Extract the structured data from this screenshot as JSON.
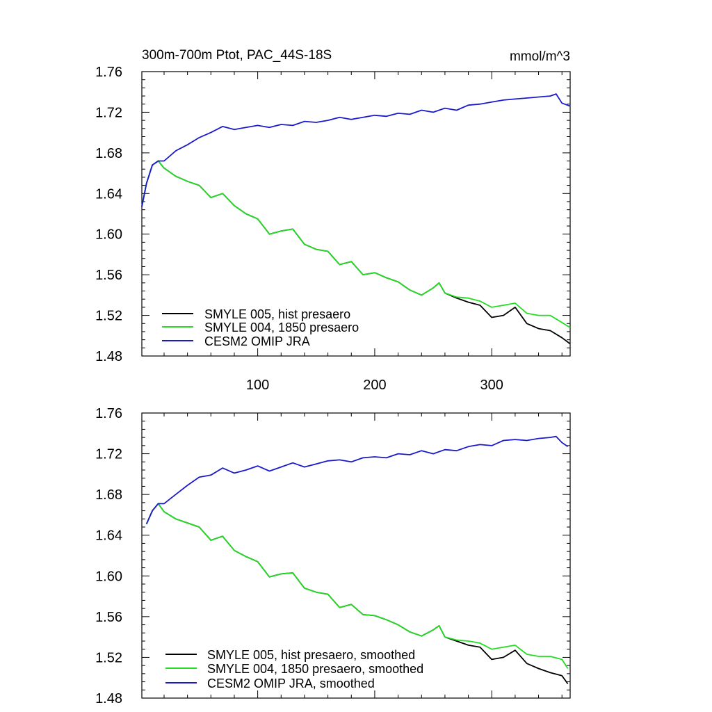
{
  "colors": {
    "smyle005": "#000000",
    "smyle004": "#22dd22",
    "omip": "#1a1acc"
  },
  "chart_data": [
    {
      "type": "line",
      "title": "300m-700m Ptot, PAC_44S-18S",
      "units": "mmol/m^3",
      "xlim": [
        1,
        367
      ],
      "ylim": [
        1.48,
        1.76
      ],
      "xticks": [
        100,
        200,
        300
      ],
      "xtick_labels": [
        "100",
        "200",
        "300"
      ],
      "yticks": [
        1.48,
        1.52,
        1.56,
        1.6,
        1.64,
        1.68,
        1.72,
        1.76
      ],
      "ytick_labels": [
        "1.48",
        "1.52",
        "1.56",
        "1.60",
        "1.64",
        "1.68",
        "1.72",
        "1.76"
      ],
      "legend_position": "bottom-left",
      "series": [
        {
          "name": "SMYLE 005, hist presaero",
          "color_key": "smyle005",
          "x": [
            1,
            5,
            10,
            15,
            20,
            30,
            40,
            50,
            60,
            70,
            80,
            90,
            100,
            110,
            120,
            130,
            140,
            150,
            160,
            170,
            180,
            190,
            200,
            210,
            220,
            230,
            240,
            250,
            255,
            260,
            270,
            280,
            290,
            300,
            310,
            320,
            330,
            340,
            350,
            360,
            367
          ],
          "y": [
            1.627,
            1.65,
            1.668,
            1.672,
            1.665,
            1.657,
            1.652,
            1.648,
            1.636,
            1.64,
            1.628,
            1.62,
            1.615,
            1.6,
            1.603,
            1.605,
            1.59,
            1.585,
            1.583,
            1.57,
            1.573,
            1.56,
            1.562,
            1.557,
            1.553,
            1.545,
            1.54,
            1.547,
            1.552,
            1.542,
            1.537,
            1.533,
            1.53,
            1.518,
            1.52,
            1.528,
            1.512,
            1.507,
            1.505,
            1.498,
            1.492
          ]
        },
        {
          "name": "SMYLE 004, 1850 presaero",
          "color_key": "smyle004",
          "x": [
            1,
            5,
            10,
            15,
            20,
            30,
            40,
            50,
            60,
            70,
            80,
            90,
            100,
            110,
            120,
            130,
            140,
            150,
            160,
            170,
            180,
            190,
            200,
            210,
            220,
            230,
            240,
            250,
            255,
            260,
            270,
            280,
            290,
            300,
            310,
            320,
            330,
            340,
            350,
            360,
            367
          ],
          "y": [
            1.627,
            1.65,
            1.668,
            1.672,
            1.665,
            1.657,
            1.652,
            1.648,
            1.636,
            1.64,
            1.628,
            1.62,
            1.615,
            1.6,
            1.603,
            1.605,
            1.59,
            1.585,
            1.583,
            1.57,
            1.573,
            1.56,
            1.562,
            1.557,
            1.553,
            1.545,
            1.54,
            1.547,
            1.552,
            1.542,
            1.538,
            1.537,
            1.534,
            1.528,
            1.53,
            1.532,
            1.522,
            1.52,
            1.52,
            1.513,
            1.508
          ]
        },
        {
          "name": "CESM2 OMIP JRA",
          "color_key": "omip",
          "x": [
            1,
            5,
            10,
            15,
            20,
            30,
            40,
            50,
            60,
            70,
            80,
            90,
            100,
            110,
            120,
            130,
            140,
            150,
            160,
            170,
            180,
            190,
            200,
            210,
            220,
            230,
            240,
            250,
            260,
            270,
            280,
            290,
            300,
            310,
            320,
            330,
            340,
            350,
            355,
            360,
            367
          ],
          "y": [
            1.627,
            1.65,
            1.668,
            1.672,
            1.672,
            1.682,
            1.688,
            1.695,
            1.7,
            1.706,
            1.703,
            1.705,
            1.707,
            1.705,
            1.708,
            1.707,
            1.711,
            1.71,
            1.712,
            1.715,
            1.713,
            1.715,
            1.717,
            1.716,
            1.719,
            1.718,
            1.722,
            1.72,
            1.724,
            1.722,
            1.727,
            1.728,
            1.73,
            1.732,
            1.733,
            1.734,
            1.735,
            1.736,
            1.738,
            1.729,
            1.726
          ]
        }
      ]
    },
    {
      "type": "line",
      "xlim": [
        1,
        367
      ],
      "ylim": [
        1.48,
        1.76
      ],
      "xticks": [
        100,
        200,
        300
      ],
      "yticks": [
        1.48,
        1.52,
        1.56,
        1.6,
        1.64,
        1.68,
        1.72,
        1.76
      ],
      "ytick_labels": [
        "1.48",
        "1.52",
        "1.56",
        "1.60",
        "1.64",
        "1.68",
        "1.72",
        "1.76"
      ],
      "legend_position": "bottom-left",
      "series": [
        {
          "name": "SMYLE 005, hist presaero, smoothed",
          "color_key": "smyle005",
          "x": [
            5,
            10,
            15,
            20,
            30,
            40,
            50,
            60,
            70,
            80,
            90,
            100,
            110,
            120,
            130,
            140,
            150,
            160,
            170,
            180,
            190,
            200,
            210,
            220,
            230,
            240,
            250,
            255,
            260,
            270,
            280,
            290,
            300,
            310,
            320,
            330,
            340,
            350,
            360,
            365
          ],
          "y": [
            1.651,
            1.664,
            1.671,
            1.663,
            1.656,
            1.652,
            1.648,
            1.635,
            1.639,
            1.625,
            1.619,
            1.614,
            1.599,
            1.602,
            1.603,
            1.588,
            1.584,
            1.582,
            1.569,
            1.572,
            1.562,
            1.561,
            1.557,
            1.552,
            1.545,
            1.541,
            1.547,
            1.551,
            1.54,
            1.536,
            1.532,
            1.53,
            1.518,
            1.52,
            1.527,
            1.514,
            1.509,
            1.505,
            1.502,
            1.494
          ]
        },
        {
          "name": "SMYLE 004, 1850 presaero, smoothed",
          "color_key": "smyle004",
          "x": [
            5,
            10,
            15,
            20,
            30,
            40,
            50,
            60,
            70,
            80,
            90,
            100,
            110,
            120,
            130,
            140,
            150,
            160,
            170,
            180,
            190,
            200,
            210,
            220,
            230,
            240,
            250,
            255,
            260,
            270,
            280,
            290,
            300,
            310,
            320,
            330,
            340,
            350,
            360,
            365
          ],
          "y": [
            1.651,
            1.664,
            1.671,
            1.663,
            1.656,
            1.652,
            1.648,
            1.635,
            1.639,
            1.625,
            1.619,
            1.614,
            1.599,
            1.602,
            1.603,
            1.588,
            1.584,
            1.582,
            1.569,
            1.572,
            1.562,
            1.561,
            1.557,
            1.552,
            1.545,
            1.541,
            1.547,
            1.551,
            1.54,
            1.537,
            1.536,
            1.534,
            1.528,
            1.53,
            1.532,
            1.523,
            1.521,
            1.521,
            1.518,
            1.509
          ]
        },
        {
          "name": "CESM2 OMIP JRA, smoothed",
          "color_key": "omip",
          "x": [
            5,
            10,
            15,
            20,
            30,
            40,
            50,
            60,
            70,
            80,
            90,
            100,
            110,
            120,
            130,
            140,
            150,
            160,
            170,
            180,
            190,
            200,
            210,
            220,
            230,
            240,
            250,
            260,
            270,
            280,
            290,
            300,
            310,
            320,
            330,
            340,
            350,
            355,
            360,
            365
          ],
          "y": [
            1.651,
            1.664,
            1.671,
            1.671,
            1.68,
            1.689,
            1.697,
            1.699,
            1.706,
            1.701,
            1.704,
            1.708,
            1.703,
            1.707,
            1.711,
            1.707,
            1.71,
            1.713,
            1.714,
            1.712,
            1.716,
            1.717,
            1.716,
            1.72,
            1.719,
            1.723,
            1.72,
            1.724,
            1.723,
            1.727,
            1.729,
            1.728,
            1.733,
            1.734,
            1.733,
            1.735,
            1.736,
            1.737,
            1.731,
            1.727
          ]
        }
      ]
    }
  ]
}
